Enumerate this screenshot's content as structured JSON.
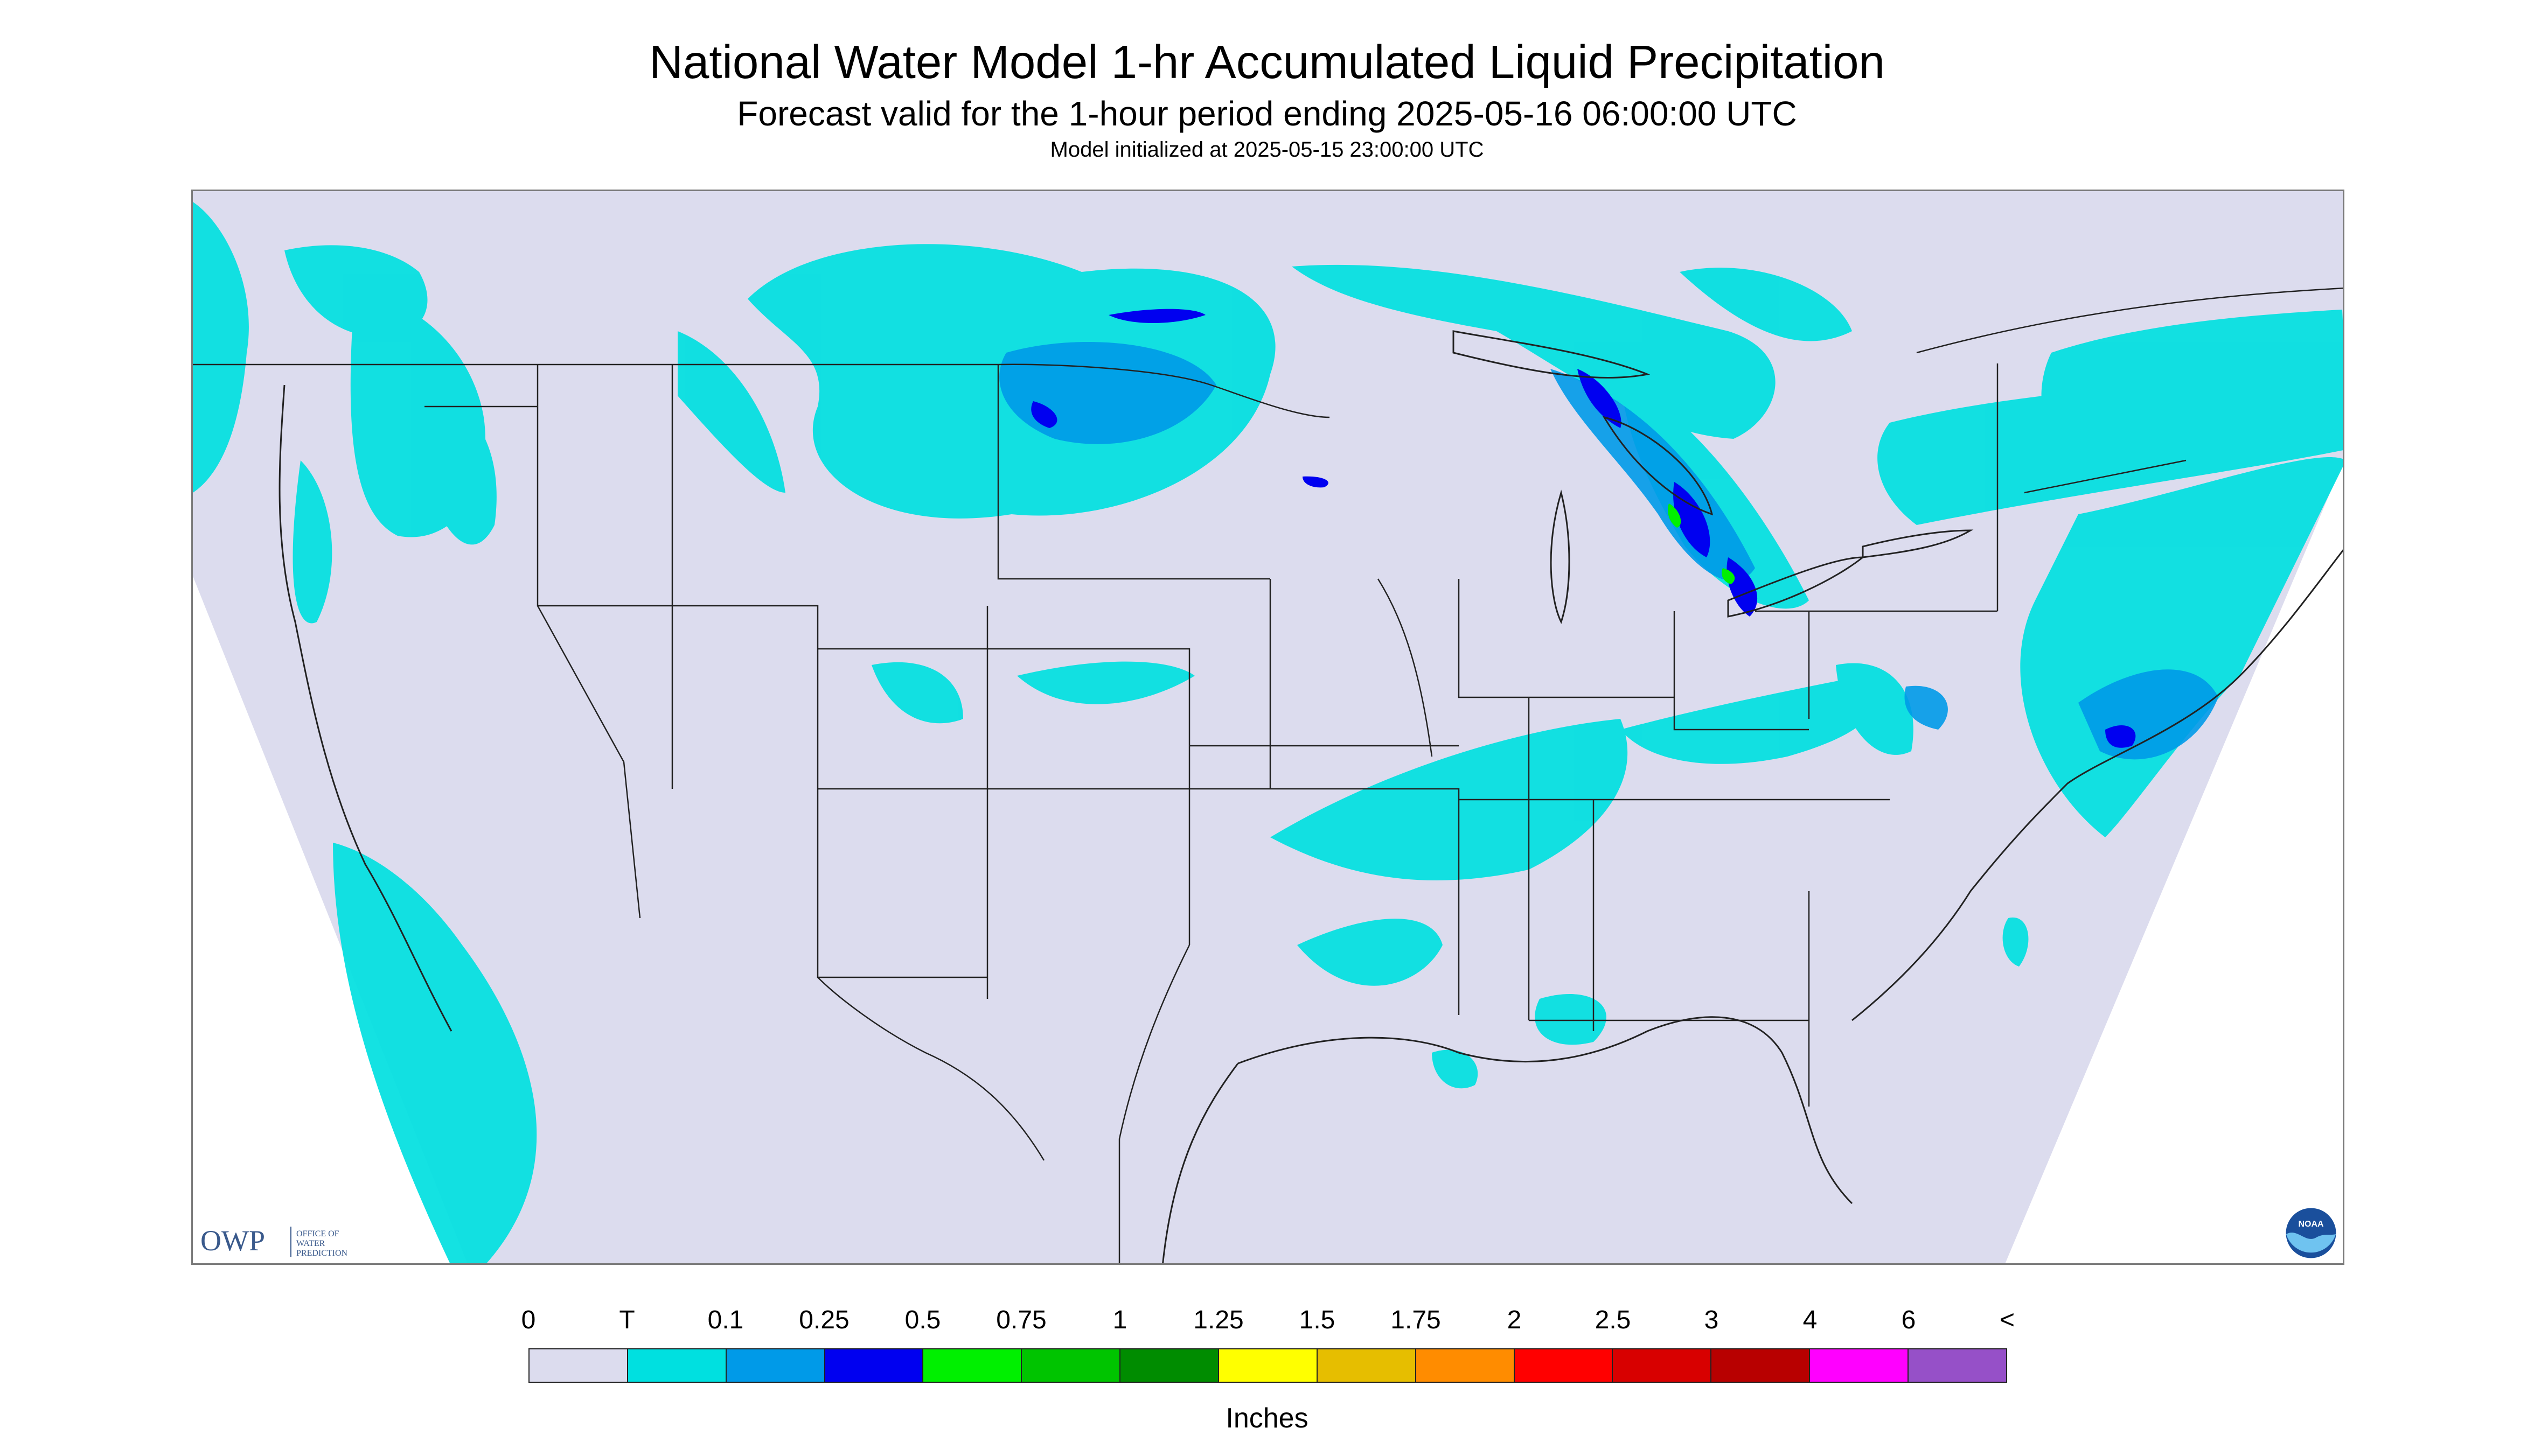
{
  "title": "National Water Model 1-hr Accumulated Liquid Precipitation",
  "subtitle": "Forecast valid for the 1-hour period ending 2025-05-16 06:00:00 UTC",
  "init_line": "Model initialized at 2025-05-15 23:00:00 UTC",
  "colors": {
    "background": "#dcdcee",
    "outside": "#ffffff",
    "trace": "#00e0e0",
    "borders": "#222222"
  },
  "logos": {
    "owp_text": "OWP",
    "owp_subtext": [
      "OFFICE OF",
      "WATER",
      "PREDICTION"
    ],
    "noaa_text": "NOAA"
  },
  "legend": {
    "units": "Inches",
    "labels": [
      "0",
      "T",
      "0.1",
      "0.25",
      "0.5",
      "0.75",
      "1",
      "1.25",
      "1.5",
      "1.75",
      "2",
      "2.5",
      "3",
      "4",
      "6",
      "<"
    ],
    "colors": [
      "#dcdcee",
      "#00e0e0",
      "#009ae8",
      "#0000f0",
      "#00f000",
      "#00c400",
      "#008c00",
      "#ffff00",
      "#e6be00",
      "#ff8c00",
      "#ff0000",
      "#d80000",
      "#b80000",
      "#ff00ff",
      "#9650c8"
    ]
  },
  "icons": [
    "owp-logo-icon",
    "noaa-logo-icon"
  ]
}
